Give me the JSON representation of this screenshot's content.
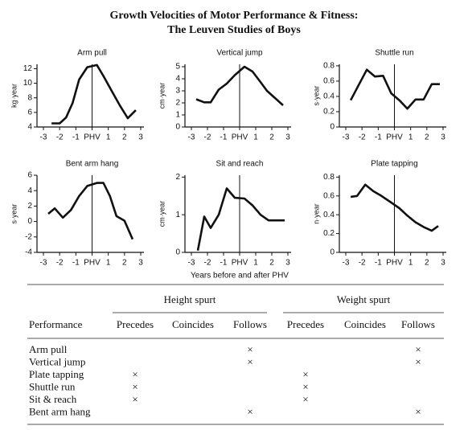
{
  "title_lines": [
    "Growth Velocities of Motor Performance & Fitness:",
    "The Leuven Studies of Boys"
  ],
  "chart_data": [
    {
      "type": "line",
      "title": "Arm pull",
      "ylabel": "kg·year",
      "color": "#111111",
      "x": [
        -2.5,
        -2,
        -1.6,
        -1.2,
        -0.8,
        -0.3,
        0.3,
        0.7,
        1.2,
        1.7,
        2.2,
        2.7
      ],
      "values": [
        4.5,
        4.5,
        5.3,
        7.3,
        10.5,
        12.2,
        12.5,
        11,
        9,
        7,
        5.2,
        6.3
      ],
      "xlim": [
        -3,
        3
      ],
      "xticks": [
        -3,
        -2,
        -1,
        {
          "value": 0,
          "label": "PHV"
        },
        1,
        2,
        3
      ],
      "ylim": [
        4,
        12.6
      ],
      "yticks": [
        4,
        6,
        8,
        10,
        12
      ],
      "vline": 0
    },
    {
      "type": "line",
      "title": "Vertical jump",
      "ylabel": "cm·year",
      "color": "#111111",
      "x": [
        -2.7,
        -2.2,
        -1.8,
        -1.3,
        -0.8,
        -0.3,
        0.3,
        0.8,
        1.2,
        1.7,
        2.2,
        2.7
      ],
      "values": [
        2.3,
        2.05,
        2.05,
        3.1,
        3.6,
        4.3,
        5.0,
        4.6,
        3.9,
        3.0,
        2.4,
        1.8
      ],
      "xlim": [
        -3,
        3
      ],
      "xticks": [
        -3,
        -2,
        -1,
        {
          "value": 0,
          "label": "PHV"
        },
        1,
        2,
        3
      ],
      "ylim": [
        0,
        5.2
      ],
      "yticks": [
        0,
        1,
        2,
        3,
        4,
        5
      ],
      "vline": 0
    },
    {
      "type": "line",
      "title": "Shuttle run",
      "ylabel": "s·year",
      "color": "#111111",
      "x": [
        -2.7,
        -2.2,
        -1.7,
        -1.2,
        -0.7,
        -0.2,
        0.3,
        0.8,
        1.3,
        1.8,
        2.3,
        2.8
      ],
      "values": [
        0.35,
        0.55,
        0.75,
        0.66,
        0.67,
        0.44,
        0.35,
        0.24,
        0.36,
        0.36,
        0.56,
        0.56
      ],
      "xlim": [
        -3,
        3
      ],
      "xticks": [
        -3,
        -2,
        -1,
        {
          "value": 0,
          "label": "PHV"
        },
        1,
        2,
        3
      ],
      "ylim": [
        0,
        0.82
      ],
      "yticks": [
        0,
        0.2,
        0.4,
        0.6,
        0.8
      ],
      "vline": 0
    },
    {
      "type": "line",
      "title": "Bent arm hang",
      "ylabel": "s·year",
      "color": "#111111",
      "x": [
        -2.7,
        -2.3,
        -1.8,
        -1.3,
        -0.8,
        -0.3,
        0.3,
        0.7,
        1.1,
        1.5,
        2.0,
        2.5
      ],
      "values": [
        1,
        1.7,
        0.5,
        1.5,
        3.3,
        4.6,
        5,
        5,
        3.3,
        0.7,
        0.1,
        -2.3
      ],
      "xlim": [
        -3,
        3
      ],
      "xticks": [
        -3,
        -2,
        -1,
        {
          "value": 0,
          "label": "PHV"
        },
        1,
        2,
        3
      ],
      "ylim": [
        -4,
        6
      ],
      "yticks": [
        -4,
        -2,
        0,
        2,
        4,
        6
      ],
      "vline": 0
    },
    {
      "type": "line",
      "title": "Sit and reach",
      "ylabel": "cm·year",
      "xlabel": "Years before and after PHV",
      "color": "#111111",
      "x": [
        -2.6,
        -2.2,
        -1.8,
        -1.3,
        -0.8,
        -0.3,
        0.3,
        0.8,
        1.3,
        1.8,
        2.3,
        2.8
      ],
      "values": [
        0.05,
        0.95,
        0.65,
        1,
        1.7,
        1.45,
        1.43,
        1.25,
        1,
        0.85,
        0.85,
        0.85
      ],
      "xlim": [
        -3,
        3
      ],
      "xticks": [
        -3,
        -2,
        -1,
        {
          "value": 0,
          "label": "PHV"
        },
        1,
        2,
        3
      ],
      "ylim": [
        0,
        2.05
      ],
      "yticks": [
        0,
        1,
        2
      ],
      "vline": 0
    },
    {
      "type": "line",
      "title": "Plate tapping",
      "ylabel": "n·year",
      "color": "#111111",
      "x": [
        -2.7,
        -2.3,
        -1.8,
        -1.3,
        -0.8,
        -0.2,
        0.3,
        0.8,
        1.3,
        1.8,
        2.3,
        2.7
      ],
      "values": [
        0.59,
        0.6,
        0.72,
        0.65,
        0.6,
        0.53,
        0.47,
        0.39,
        0.32,
        0.27,
        0.23,
        0.28
      ],
      "xlim": [
        -3,
        3
      ],
      "xticks": [
        -3,
        -2,
        -1,
        {
          "value": 0,
          "label": "PHV"
        },
        1,
        2,
        3
      ],
      "ylim": [
        0,
        0.82
      ],
      "yticks": [
        0,
        0.2,
        0.4,
        0.6,
        0.8
      ],
      "vline": 0
    }
  ],
  "table": {
    "groups": [
      "Height spurt",
      "Weight spurt"
    ],
    "columns": [
      "Performance",
      "Precedes",
      "Coincides",
      "Follows",
      "Precedes",
      "Coincides",
      "Follows"
    ],
    "rows": [
      [
        "Arm pull",
        null,
        null,
        "×",
        null,
        null,
        "×"
      ],
      [
        "Vertical jump",
        null,
        null,
        "×",
        null,
        null,
        "×"
      ],
      [
        "Plate tapping",
        "×",
        null,
        null,
        "×",
        null,
        null
      ],
      [
        "Shuttle run",
        "×",
        null,
        null,
        "×",
        null,
        null
      ],
      [
        "Sit & reach",
        "×",
        null,
        null,
        "×",
        null,
        null
      ],
      [
        "Bent arm hang",
        null,
        null,
        "×",
        null,
        null,
        "×"
      ]
    ]
  }
}
